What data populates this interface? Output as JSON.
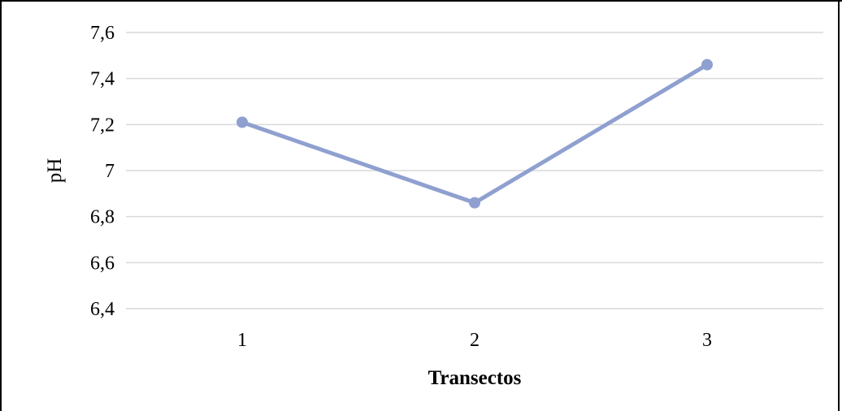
{
  "chart_data": {
    "type": "line",
    "title": "",
    "xlabel": "Transectos",
    "ylabel": "pH",
    "categories": [
      "1",
      "2",
      "3"
    ],
    "series": [
      {
        "values": [
          7.21,
          6.86,
          7.46
        ],
        "color": "#8FA0D0"
      }
    ],
    "ylim": [
      6.4,
      7.6
    ],
    "y_ticks": [
      "6,4",
      "6,6",
      "6,8",
      "7",
      "7,2",
      "7,4",
      "7,6"
    ],
    "y_tick_values": [
      6.4,
      6.6,
      6.8,
      7.0,
      7.2,
      7.4,
      7.6
    ],
    "grid": true,
    "legend": "none",
    "colors": {
      "line": "#8FA0D0",
      "gridline": "#D9D9D9",
      "text": "#000000"
    }
  }
}
